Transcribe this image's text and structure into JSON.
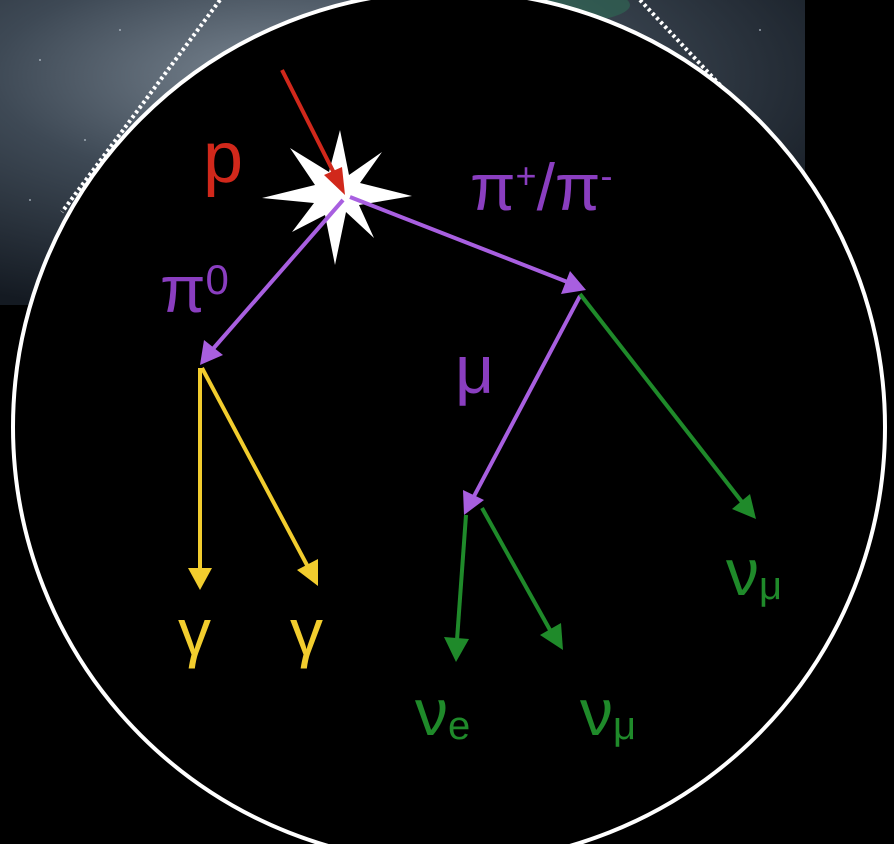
{
  "colors": {
    "proton": "#d1281b",
    "pion": "#8a3ec0",
    "pion_arrow": "#a85fe0",
    "muon": "#8a3ec0",
    "muon_arrow": "#a85fe0",
    "photon": "#f2cd2e",
    "neutrino": "#1f8a2a",
    "circle_border": "#ffffff",
    "background_sky": "#3b4550"
  },
  "labels": {
    "proton": "p",
    "charged_pion_pos": "π",
    "charged_pion_pos_sup": "+",
    "charged_pion_sep": "/",
    "charged_pion_neg": "π",
    "charged_pion_neg_sup": "-",
    "neutral_pion": "π",
    "neutral_pion_sup": "0",
    "muon": "μ",
    "photon_1": "γ",
    "photon_2": "γ",
    "nu_e_symbol": "ν",
    "nu_e_sub": "e",
    "nu_mu_1_symbol": "ν",
    "nu_mu_1_sub": "μ",
    "nu_mu_2_symbol": "ν",
    "nu_mu_2_sub": "μ"
  }
}
